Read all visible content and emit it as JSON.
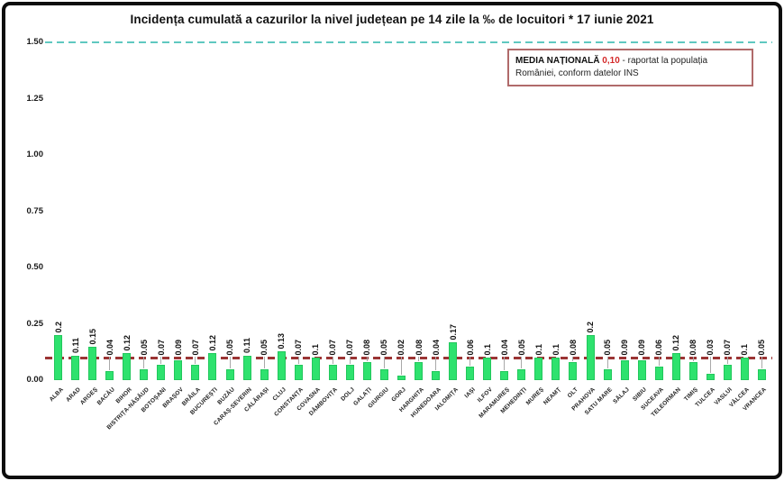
{
  "header": {
    "title": "Incidența cumulată a cazurilor la nivel județean pe 14 zile la ‰ de locuitori *  17 iunie 2021"
  },
  "legend_box": {
    "label": "MEDIA NAȚIONALĂ",
    "value": "0,10",
    "description": "- raportat la populația României, conform datelor INS",
    "value_color": "#d42a2a",
    "border_color": "#b06a6a"
  },
  "chart_data": {
    "type": "bar",
    "title": "Incidența cumulată a cazurilor la nivel județean pe 14 zile la ‰ de locuitori * 17 iunie 2021",
    "xlabel": "",
    "ylabel": "",
    "ylim": [
      0,
      1.5
    ],
    "yticks": [
      "0.00",
      "0.25",
      "0.50",
      "0.75",
      "1.00",
      "1.25",
      "1.50"
    ],
    "grid": false,
    "legend_position": "top-right",
    "bar_color": "#2ee26e",
    "categories": [
      "ALBA",
      "ARAD",
      "ARGEȘ",
      "BACĂU",
      "BIHOR",
      "BISTRIȚA-NĂSĂUD",
      "BOTOȘANI",
      "BRAȘOV",
      "BRĂILA",
      "BUCUREȘTI",
      "BUZĂU",
      "CARAȘ-SEVERIN",
      "CĂLĂRAȘI",
      "CLUJ",
      "CONSTANȚA",
      "COVASNA",
      "DÂMBOVIȚA",
      "DOLJ",
      "GALAȚI",
      "GIURGIU",
      "GORJ",
      "HARGHITA",
      "HUNEDOARA",
      "IALOMIȚA",
      "IAȘI",
      "ILFOV",
      "MARAMUREȘ",
      "MEHEDINȚI",
      "MUREȘ",
      "NEAMȚ",
      "OLT",
      "PRAHOVA",
      "SATU MARE",
      "SĂLAJ",
      "SIBIU",
      "SUCEAVA",
      "TELEORMAN",
      "TIMIȘ",
      "TULCEA",
      "VASLUI",
      "VÂLCEA",
      "VRANCEA"
    ],
    "values": [
      0.2,
      0.11,
      0.15,
      0.04,
      0.12,
      0.05,
      0.07,
      0.09,
      0.07,
      0.12,
      0.05,
      0.11,
      0.05,
      0.13,
      0.07,
      0.1,
      0.07,
      0.07,
      0.08,
      0.05,
      0.02,
      0.08,
      0.04,
      0.17,
      0.06,
      0.1,
      0.04,
      0.05,
      0.1,
      0.1,
      0.08,
      0.2,
      0.05,
      0.09,
      0.09,
      0.06,
      0.12,
      0.08,
      0.03,
      0.07,
      0.1,
      0.05
    ],
    "value_labels": [
      "0.2",
      "0.11",
      "0.15",
      "0.04",
      "0.12",
      "0.05",
      "0.07",
      "0.09",
      "0.07",
      "0.12",
      "0.05",
      "0.11",
      "0.05",
      "0.13",
      "0.07",
      "0.1",
      "0.07",
      "0.07",
      "0.08",
      "0.05",
      "0.02",
      "0.08",
      "0.04",
      "0.17",
      "0.06",
      "0.1",
      "0.04",
      "0.05",
      "0.1",
      "0.1",
      "0.08",
      "0.2",
      "0.05",
      "0.09",
      "0.09",
      "0.06",
      "0.12",
      "0.08",
      "0.03",
      "0.07",
      "0.1",
      "0.05"
    ],
    "reference_lines": [
      {
        "name": "national-average",
        "value": 0.1,
        "color": "#9b3434",
        "style": "dashed",
        "label": "MEDIA NAȚIONALĂ 0,10"
      },
      {
        "name": "upper-bound",
        "value": 1.5,
        "color": "#5fc8c0",
        "style": "dashed",
        "label": ""
      }
    ]
  }
}
